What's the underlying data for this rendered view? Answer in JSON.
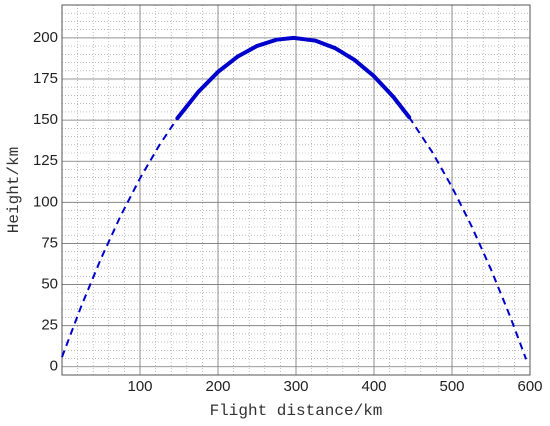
{
  "chart_data": {
    "type": "line",
    "x_label": "Flight distance/km",
    "y_label": "Height/km",
    "xlim": [
      0,
      600
    ],
    "ylim": [
      -5,
      220
    ],
    "xticks": [
      100,
      200,
      300,
      400,
      500,
      600
    ],
    "yticks": [
      0,
      25,
      50,
      75,
      100,
      125,
      150,
      175,
      200
    ],
    "grid": true,
    "minor_grid": true,
    "series": [
      {
        "color": "#0000cc",
        "style": "dashed",
        "x": [
          0,
          25,
          50,
          75,
          100,
          125,
          148,
          null,
          445,
          475,
          500,
          525,
          550,
          575,
          595
        ],
        "values": [
          5.9,
          37.2,
          65.8,
          91.6,
          114.6,
          134.9,
          151.2,
          null,
          151.8,
          130.3,
          109.3,
          85.6,
          59.2,
          30.0,
          4.6
        ]
      },
      {
        "color": "#0000cc",
        "style": "solid",
        "x": [
          148,
          175,
          200,
          225,
          250,
          275,
          297,
          325,
          350,
          375,
          400,
          425,
          445
        ],
        "values": [
          151.2,
          167.3,
          179.3,
          188.6,
          195.1,
          198.9,
          200,
          198.3,
          193.8,
          186.6,
          176.7,
          164.0,
          151.8
        ]
      }
    ]
  }
}
